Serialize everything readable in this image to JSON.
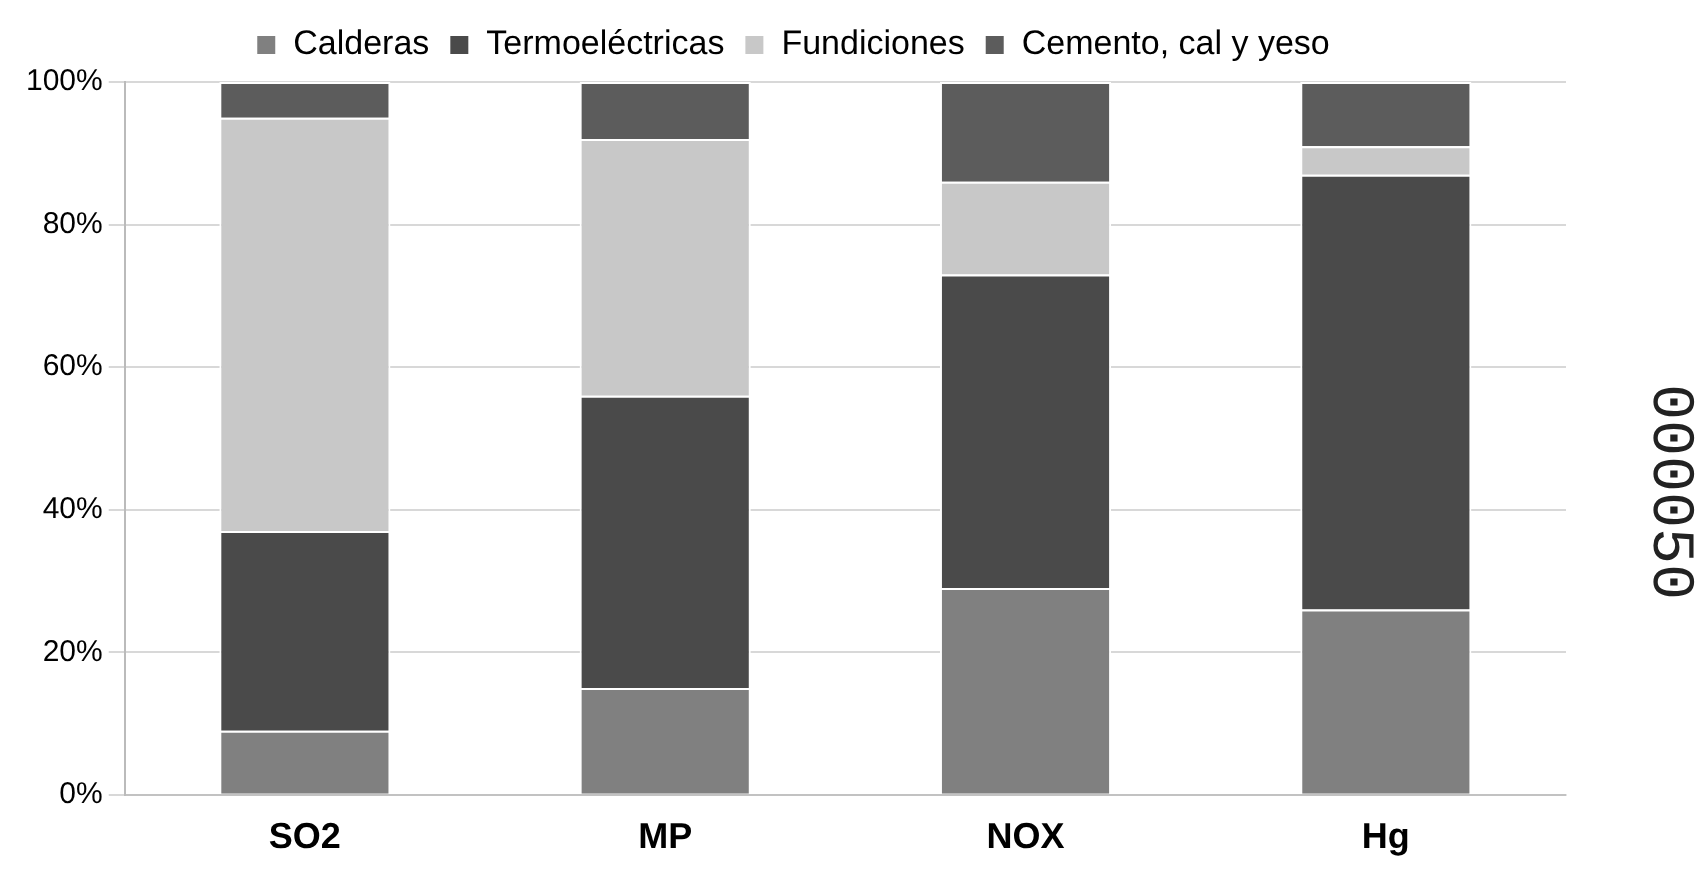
{
  "chart_data": {
    "type": "bar",
    "stacked": true,
    "categories": [
      "SO2",
      "MP",
      "NOX",
      "Hg"
    ],
    "series": [
      {
        "name": "Calderas",
        "color": "#808080",
        "values": [
          9,
          15,
          29,
          26
        ]
      },
      {
        "name": "Termoeléctricas",
        "color": "#4a4a4a",
        "values": [
          28,
          41,
          44,
          61
        ]
      },
      {
        "name": "Fundiciones",
        "color": "#c8c8c8",
        "values": [
          58,
          36,
          13,
          4
        ]
      },
      {
        "name": "Cemento, cal y yeso",
        "color": "#5c5c5c",
        "values": [
          5,
          8,
          14,
          9
        ]
      }
    ],
    "ylim": [
      0,
      100
    ],
    "yticks": [
      {
        "value": 0,
        "label": "0%"
      },
      {
        "value": 20,
        "label": "20%"
      },
      {
        "value": 40,
        "label": "40%"
      },
      {
        "value": 60,
        "label": "60%"
      },
      {
        "value": 80,
        "label": "80%"
      },
      {
        "value": 100,
        "label": "100%"
      }
    ],
    "grid": "y",
    "legend": "top",
    "annotations": [
      "000050"
    ]
  }
}
